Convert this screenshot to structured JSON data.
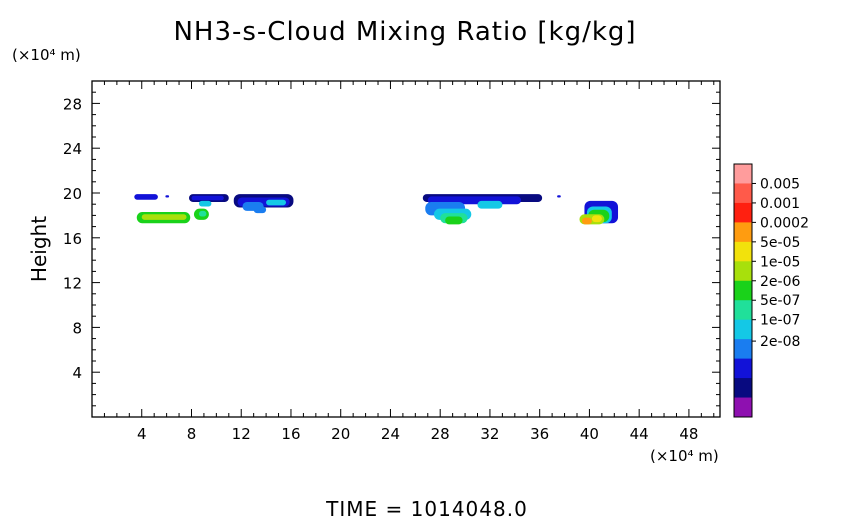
{
  "chart_data": {
    "type": "heatmap",
    "title": "NH3-s-Cloud Mixing Ratio [kg/kg]",
    "ylabel": "Height",
    "x_unit": "(×10⁴ m)",
    "y_unit": "(×10⁴ m)",
    "xlim": [
      0,
      50.5
    ],
    "ylim": [
      0,
      30
    ],
    "xticks": [
      4,
      8,
      12,
      16,
      20,
      24,
      28,
      32,
      36,
      40,
      44,
      48
    ],
    "yticks": [
      4,
      8,
      12,
      16,
      20,
      24,
      28
    ],
    "footer": "TIME =  1014048.0",
    "grid": false,
    "legend_position": "right",
    "colorbar": {
      "labels": [
        "0.005",
        "0.001",
        "0.0002",
        "5e-05",
        "1e-05",
        "2e-06",
        "5e-07",
        "1e-07",
        "2e-08"
      ],
      "colors": [
        "#ff9c9c",
        "#ff5a4a",
        "#ff2010",
        "#ff9c10",
        "#f2e20c",
        "#a8e00c",
        "#1ad21a",
        "#20e09a",
        "#14c8e6",
        "#1a7df0",
        "#1212d8",
        "#080a80",
        "#8e10b0"
      ]
    },
    "regions": [
      {
        "x": 4.5,
        "y": 19.7,
        "level": "1e-07"
      },
      {
        "x": 9.5,
        "y": 19.5,
        "level": "1e-07"
      },
      {
        "x": 6.0,
        "y": 17.8,
        "level": "1e-05"
      },
      {
        "x": 9.0,
        "y": 18.2,
        "level": "5e-06"
      },
      {
        "x": 14.0,
        "y": 19.2,
        "level": "2e-07"
      },
      {
        "x": 30.0,
        "y": 19.2,
        "level": "2e-07"
      },
      {
        "x": 29.0,
        "y": 18.0,
        "level": "2e-06"
      },
      {
        "x": 40.5,
        "y": 18.0,
        "level": "5e-05"
      }
    ]
  }
}
